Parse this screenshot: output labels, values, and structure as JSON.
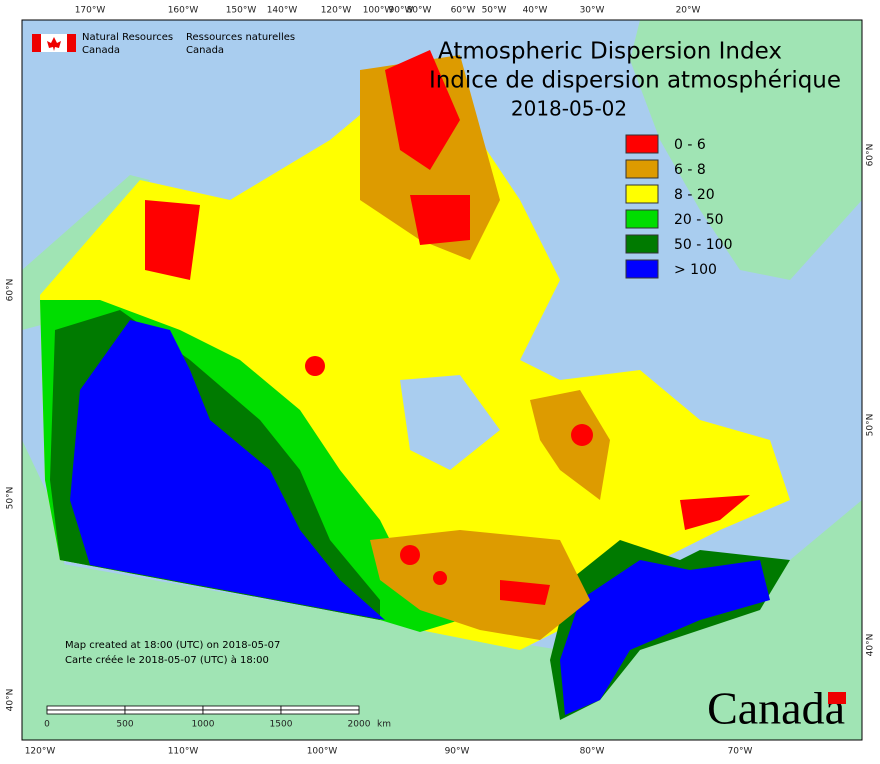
{
  "header": {
    "agency_en": [
      "Natural Resources",
      "Canada"
    ],
    "agency_fr": [
      "Ressources naturelles",
      "Canada"
    ]
  },
  "title": [
    "Atmospheric Dispersion Index",
    "Indice de dispersion atmosphérique"
  ],
  "date": "2018-05-02",
  "legend": [
    {
      "label": "0 - 6",
      "color": "#ff0000"
    },
    {
      "label": "6 - 8",
      "color": "#dd9b00"
    },
    {
      "label": "8 - 20",
      "color": "#ffff00"
    },
    {
      "label": "20 - 50",
      "color": "#00dd00"
    },
    {
      "label": "50 - 100",
      "color": "#007a00"
    },
    {
      "label": "> 100",
      "color": "#0000ff"
    }
  ],
  "top_longitudes": [
    "170°W",
    "160°W",
    "150°W",
    "140°W",
    "120°W",
    "100°W",
    "90°W",
    "80°W",
    "60°W",
    "50°W",
    "40°W",
    "30°W",
    "20°W"
  ],
  "bottom_longitudes": [
    "120°W",
    "110°W",
    "100°W",
    "90°W",
    "80°W",
    "70°W"
  ],
  "left_latitudes": [
    "60°N",
    "50°N",
    "40°N"
  ],
  "right_latitudes": [
    "60°N",
    "50°N",
    "40°N"
  ],
  "notes": [
    "Map created at 18:00 (UTC) on 2018-05-07",
    "Carte créée le 2018-05-07 (UTC) à 18:00"
  ],
  "scale_bar": {
    "ticks": [
      "0",
      "500",
      "1000",
      "1500",
      "2000"
    ],
    "unit": "km"
  },
  "wordmark": "Canada"
}
